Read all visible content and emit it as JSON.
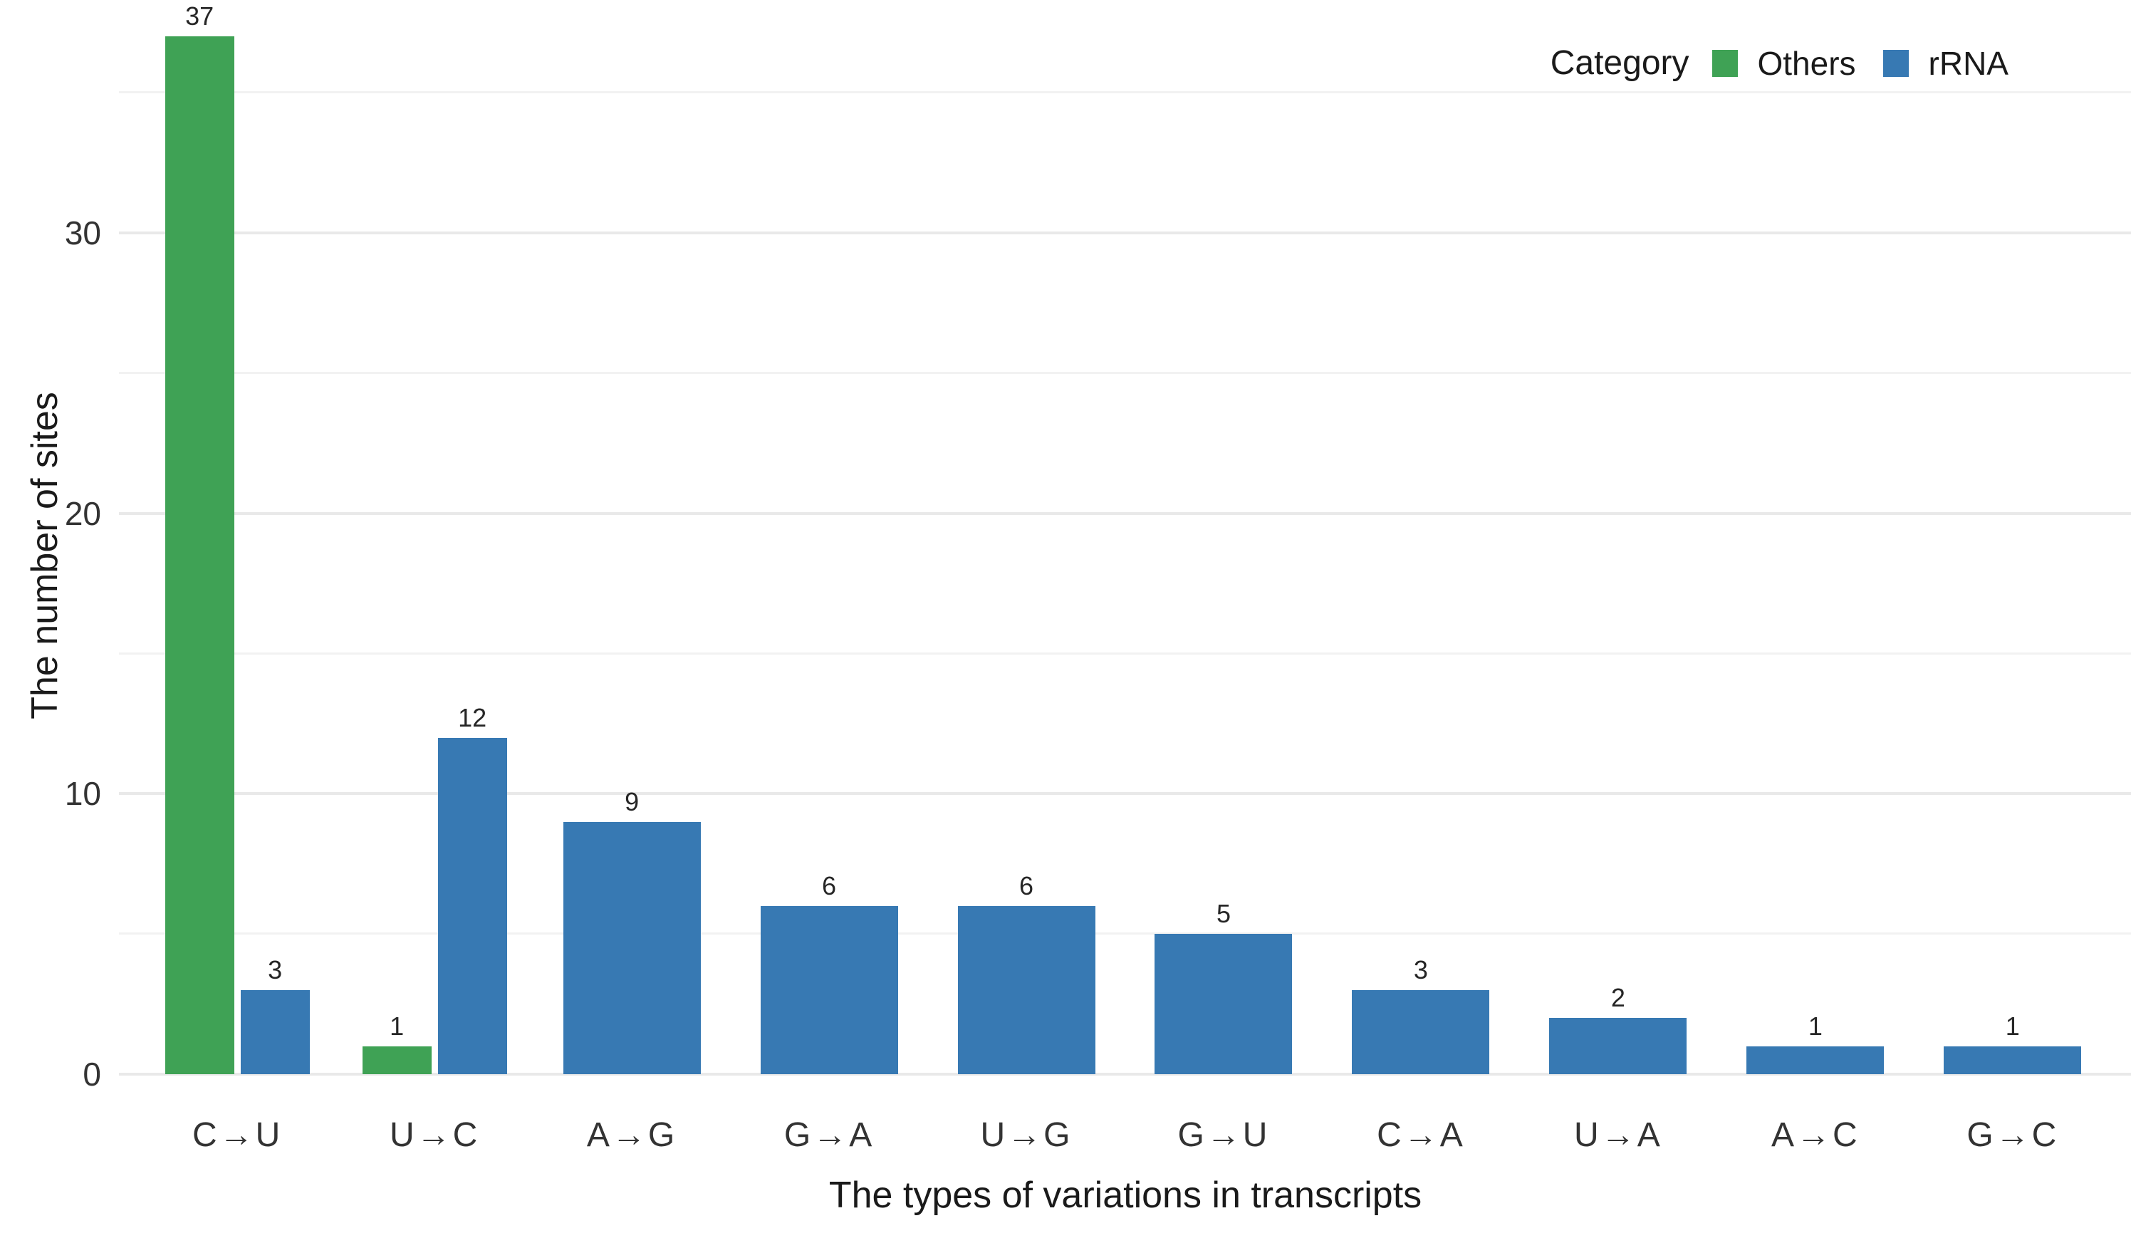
{
  "chart_data": {
    "type": "bar",
    "title": "",
    "xlabel": "The types of variations in transcripts",
    "ylabel": "The number of sites",
    "legend_title": "Category",
    "legend_position": "top-right-inside",
    "categories": [
      "C→U",
      "U→C",
      "A→G",
      "G→A",
      "U→G",
      "G→U",
      "C→A",
      "U→A",
      "A→C",
      "G→C"
    ],
    "series": [
      {
        "name": "Others",
        "color": "#3FA255",
        "values": [
          37,
          1,
          null,
          null,
          null,
          null,
          null,
          null,
          null,
          null
        ]
      },
      {
        "name": "rRNA",
        "color": "#3779B3",
        "values": [
          3,
          12,
          9,
          6,
          6,
          5,
          3,
          2,
          1,
          1
        ]
      }
    ],
    "bar_value_labels": [
      {
        "category": "C→U",
        "Others": 37,
        "rRNA": 3
      },
      {
        "category": "U→C",
        "Others": 1,
        "rRNA": 12
      },
      {
        "category": "A→G",
        "rRNA": 9
      },
      {
        "category": "G→A",
        "rRNA": 6
      },
      {
        "category": "U→G",
        "rRNA": 6
      },
      {
        "category": "G→U",
        "rRNA": 5
      },
      {
        "category": "C→A",
        "rRNA": 3
      },
      {
        "category": "U→A",
        "rRNA": 2
      },
      {
        "category": "A→C",
        "rRNA": 1
      },
      {
        "category": "G→C",
        "rRNA": 1
      }
    ],
    "ylim": [
      0,
      38
    ],
    "yticks": [
      0,
      10,
      20,
      30
    ],
    "grid": {
      "on": true,
      "orientation": "horizontal",
      "minor_every": 5,
      "major_every": 10
    }
  },
  "colors": {
    "others_green": "#3FA255",
    "rrna_blue": "#3779B3",
    "grid_major": "#E9E9E9",
    "grid_minor": "#F2F2F2",
    "text_dark": "#1A1A1A",
    "text_tick": "#333333",
    "background": "#FFFFFF"
  }
}
